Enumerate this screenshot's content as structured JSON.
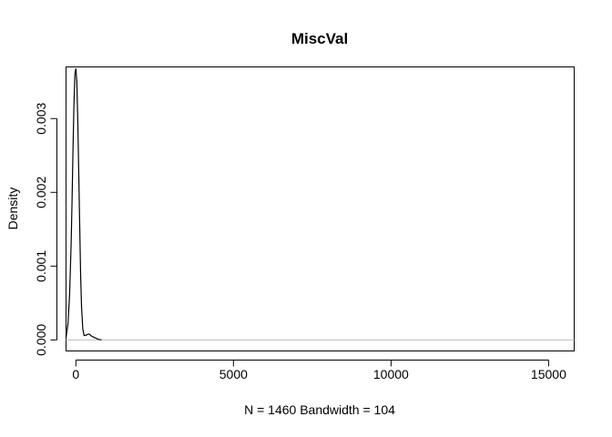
{
  "chart_data": {
    "type": "line",
    "title": "MiscVal",
    "xlabel": "N = 1460   Bandwidth = 104",
    "ylabel": "Density",
    "xlim": [
      -312,
      15812
    ],
    "ylim": [
      -0.00015,
      0.0037
    ],
    "x_ticks": [
      {
        "value": 0,
        "label": "0"
      },
      {
        "value": 5000,
        "label": "5000"
      },
      {
        "value": 10000,
        "label": "10000"
      },
      {
        "value": 15000,
        "label": "15000"
      }
    ],
    "y_ticks": [
      {
        "value": 0,
        "label": "0.000"
      },
      {
        "value": 0.001,
        "label": "0.001"
      },
      {
        "value": 0.002,
        "label": "0.002"
      },
      {
        "value": 0.003,
        "label": "0.003"
      }
    ],
    "baseline": 0,
    "series": [
      {
        "x": [
          -312,
          -250,
          -200,
          -150,
          -120,
          -90,
          -60,
          -30,
          0,
          30,
          60,
          90,
          120,
          150,
          180,
          220,
          260,
          300,
          350,
          400,
          450,
          500,
          550,
          600,
          650,
          700,
          750,
          812
        ],
        "y": [
          3e-05,
          0.00022,
          0.0006,
          0.0013,
          0.0019,
          0.0026,
          0.0032,
          0.0036,
          0.00368,
          0.0035,
          0.003,
          0.0023,
          0.0016,
          0.0009,
          0.00045,
          0.00015,
          6e-05,
          6e-05,
          7e-05,
          8e-05,
          7e-05,
          5e-05,
          4e-05,
          3e-05,
          2e-05,
          1e-05,
          5e-06,
          2e-06
        ]
      }
    ]
  }
}
